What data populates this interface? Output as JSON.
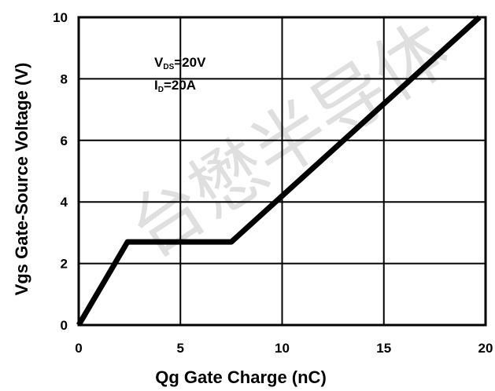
{
  "chart_data": {
    "type": "line",
    "title": "",
    "xlabel": "Qg Gate Charge (nC)",
    "ylabel": "Vgs Gate-Source Voltage (V)",
    "xlim": [
      0,
      20
    ],
    "ylim": [
      0,
      10
    ],
    "x_ticks": [
      0,
      5,
      10,
      15,
      20
    ],
    "y_ticks": [
      0,
      2,
      4,
      6,
      8,
      10
    ],
    "x_tick_labels": [
      "0",
      "5",
      "10",
      "15",
      "20"
    ],
    "y_tick_labels": [
      "0",
      "2",
      "4",
      "6",
      "8",
      "10"
    ],
    "grid": true,
    "series": [
      {
        "x": [
          0,
          2.4,
          7.5,
          19.7
        ],
        "y": [
          0,
          2.7,
          2.7,
          10
        ],
        "color": "#000000"
      }
    ],
    "annotations": [
      {
        "main": "V",
        "sub": "DS",
        "rest": "=20V"
      },
      {
        "main": "I",
        "sub": "D",
        "rest": "=20A"
      }
    ],
    "watermark": "台懋半导体"
  }
}
